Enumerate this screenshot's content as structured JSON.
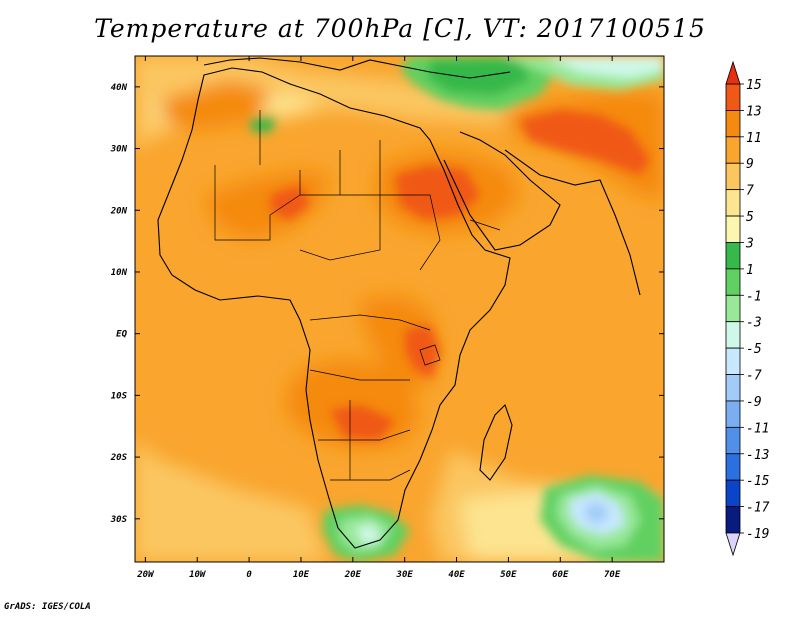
{
  "title": "Temperature at 700hPa [C], VT: 2017100515",
  "credit": "GrADS: IGES/COLA",
  "map": {
    "lon_range": [
      -22,
      80
    ],
    "lat_range": [
      -37,
      45
    ],
    "lat_ticks": [
      {
        "value": 40,
        "label": "40N"
      },
      {
        "value": 30,
        "label": "30N"
      },
      {
        "value": 20,
        "label": "20N"
      },
      {
        "value": 10,
        "label": "10N"
      },
      {
        "value": 0,
        "label": "EQ"
      },
      {
        "value": -10,
        "label": "10S"
      },
      {
        "value": -20,
        "label": "20S"
      },
      {
        "value": -30,
        "label": "30S"
      }
    ],
    "lon_ticks": [
      {
        "value": -20,
        "label": "20W"
      },
      {
        "value": -10,
        "label": "10W"
      },
      {
        "value": 0,
        "label": "0"
      },
      {
        "value": 10,
        "label": "10E"
      },
      {
        "value": 20,
        "label": "20E"
      },
      {
        "value": 30,
        "label": "30E"
      },
      {
        "value": 40,
        "label": "40E"
      },
      {
        "value": 50,
        "label": "50E"
      },
      {
        "value": 60,
        "label": "60E"
      },
      {
        "value": 70,
        "label": "70E"
      }
    ]
  },
  "colorbar": {
    "levels": [
      15,
      13,
      11,
      9,
      7,
      5,
      3,
      1,
      -1,
      -3,
      -5,
      -7,
      -9,
      -11,
      -13,
      -15,
      -17,
      -19
    ],
    "colors": [
      "#e83010",
      "#f05818",
      "#f58a10",
      "#f9a52e",
      "#fbc660",
      "#fde490",
      "#fcf6b0",
      "#36b84a",
      "#60d060",
      "#98e898",
      "#d0f8e8",
      "#c8e8ff",
      "#a2ccf8",
      "#7aaef0",
      "#5090e8",
      "#2a70e0",
      "#0a44c8",
      "#081c80",
      "#dcd4f8"
    ]
  }
}
